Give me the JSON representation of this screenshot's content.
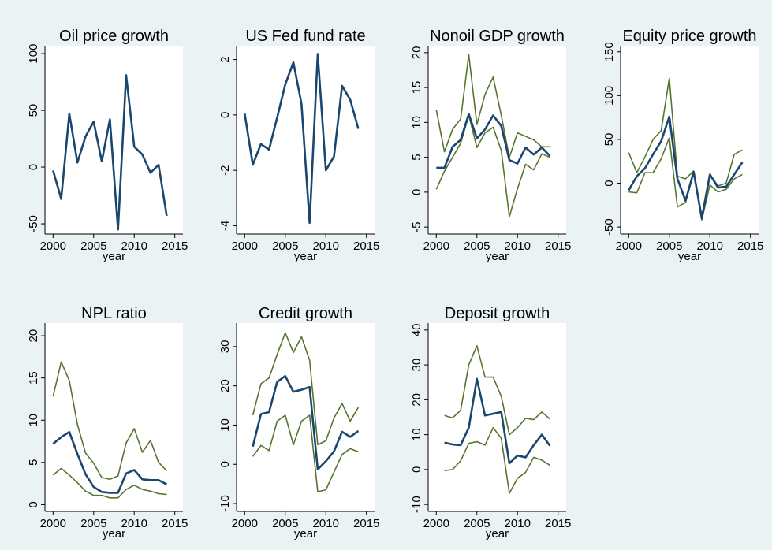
{
  "chart_data": [
    {
      "type": "line",
      "title": "Oil price growth",
      "x_label": "year",
      "x": [
        2000,
        2001,
        2002,
        2003,
        2004,
        2005,
        2006,
        2007,
        2008,
        2009,
        2010,
        2011,
        2012,
        2013,
        2014
      ],
      "series": [
        {
          "color": "#1a476f",
          "values": [
            -3,
            -28,
            47,
            4,
            27,
            40,
            5,
            42,
            -55,
            81,
            18,
            11,
            -5,
            2,
            -43
          ]
        }
      ],
      "xlim": [
        1999,
        2016
      ],
      "ylim": [
        -59,
        107
      ],
      "xticks": [
        2000,
        2005,
        2010,
        2015
      ],
      "yticks": [
        -50,
        0,
        50,
        100
      ]
    },
    {
      "type": "line",
      "title": "US Fed fund rate",
      "x_label": "year",
      "x": [
        2000,
        2001,
        2002,
        2003,
        2004,
        2005,
        2006,
        2007,
        2008,
        2009,
        2010,
        2011,
        2012,
        2013,
        2014
      ],
      "series": [
        {
          "color": "#1a476f",
          "values": [
            0.05,
            -1.8,
            -1.05,
            -1.25,
            -0.1,
            1.1,
            1.9,
            0.4,
            -3.9,
            2.2,
            -2.0,
            -1.5,
            1.05,
            0.55,
            -0.5
          ]
        }
      ],
      "xlim": [
        1999,
        2016
      ],
      "ylim": [
        -4.3,
        2.5
      ],
      "xticks": [
        2000,
        2005,
        2010,
        2015
      ],
      "yticks": [
        -4,
        -2,
        0,
        2
      ]
    },
    {
      "type": "line",
      "title": "Nonoil GDP growth",
      "x_label": "year",
      "x": [
        2000,
        2001,
        2002,
        2003,
        2004,
        2005,
        2006,
        2007,
        2008,
        2009,
        2010,
        2011,
        2012,
        2013,
        2014
      ],
      "series": [
        {
          "color": "#55752f",
          "values": [
            11.8,
            5.8,
            9.0,
            10.5,
            19.7,
            9.7,
            14,
            16.5,
            11,
            5,
            8.5,
            8.0,
            7.5,
            6.5,
            6.5
          ]
        },
        {
          "color": "#55752f",
          "values": [
            0.4,
            3.0,
            5.0,
            7,
            11,
            6.4,
            8.5,
            9.3,
            6,
            -3.5,
            0.5,
            4.0,
            3.2,
            5.5,
            5.0
          ]
        },
        {
          "color": "#1a476f",
          "values": [
            3.5,
            3.5,
            6.5,
            7.5,
            11.2,
            7.7,
            9.0,
            11,
            9.5,
            4.6,
            4.1,
            6.4,
            5.4,
            6.4,
            5.2
          ]
        }
      ],
      "xlim": [
        1999,
        2016
      ],
      "ylim": [
        -6,
        21
      ],
      "xticks": [
        2000,
        2005,
        2010,
        2015
      ],
      "yticks": [
        -5,
        0,
        5,
        10,
        15,
        20
      ]
    },
    {
      "type": "line",
      "title": "Equity price growth",
      "x_label": "year",
      "x": [
        2000,
        2001,
        2002,
        2003,
        2004,
        2005,
        2006,
        2007,
        2008,
        2009,
        2010,
        2011,
        2012,
        2013,
        2014
      ],
      "series": [
        {
          "color": "#55752f",
          "values": [
            35,
            12,
            30,
            50,
            60,
            120,
            8,
            5,
            14,
            -38,
            10,
            -3,
            0,
            33,
            38
          ]
        },
        {
          "color": "#55752f",
          "values": [
            -10,
            -11,
            12,
            12,
            28,
            52,
            -27,
            -22,
            13,
            -42,
            -2,
            -10,
            -7,
            5,
            10
          ]
        },
        {
          "color": "#1a476f",
          "values": [
            -8,
            8,
            17,
            33,
            48,
            76,
            5,
            -20,
            13,
            -40,
            10,
            -5,
            -4,
            10,
            24
          ]
        }
      ],
      "xlim": [
        1999,
        2016
      ],
      "ylim": [
        -58,
        157
      ],
      "xticks": [
        2000,
        2005,
        2010,
        2015
      ],
      "yticks": [
        -50,
        0,
        50,
        100,
        150
      ]
    },
    {
      "type": "line",
      "title": "NPL ratio",
      "x_label": "year",
      "x": [
        2000,
        2001,
        2002,
        2003,
        2004,
        2005,
        2006,
        2007,
        2008,
        2009,
        2010,
        2011,
        2012,
        2013,
        2014
      ],
      "series": [
        {
          "color": "#55752f",
          "values": [
            12.8,
            16.9,
            14.7,
            9.5,
            6.1,
            4.9,
            3.2,
            3.0,
            3.4,
            7.3,
            9.0,
            6.2,
            7.6,
            5.0,
            4.0
          ]
        },
        {
          "color": "#55752f",
          "values": [
            3.5,
            4.3,
            3.5,
            2.6,
            1.6,
            1.1,
            1.1,
            0.8,
            0.8,
            1.8,
            2.3,
            1.8,
            1.6,
            1.3,
            1.2
          ]
        },
        {
          "color": "#1a476f",
          "values": [
            7.2,
            8.0,
            8.6,
            6.0,
            3.6,
            2.1,
            1.5,
            1.4,
            1.4,
            3.7,
            4.1,
            3.0,
            2.9,
            2.9,
            2.4
          ]
        }
      ],
      "xlim": [
        1999,
        2016
      ],
      "ylim": [
        -0.8,
        21.5
      ],
      "xticks": [
        2000,
        2005,
        2010,
        2015
      ],
      "yticks": [
        0,
        5,
        10,
        15,
        20
      ]
    },
    {
      "type": "line",
      "title": "Credit growth",
      "x_label": "year",
      "x": [
        2001,
        2002,
        2003,
        2004,
        2005,
        2006,
        2007,
        2008,
        2009,
        2010,
        2011,
        2012,
        2013,
        2014
      ],
      "series": [
        {
          "color": "#55752f",
          "values": [
            12.5,
            20.5,
            22,
            28,
            33.5,
            28.5,
            32.5,
            26.5,
            5,
            6,
            11.8,
            15.5,
            11,
            14.5
          ]
        },
        {
          "color": "#55752f",
          "values": [
            2,
            4.8,
            3.5,
            11,
            12.5,
            5,
            11,
            12.5,
            -7,
            -6.5,
            -2,
            2.5,
            4,
            3.2
          ]
        },
        {
          "color": "#1a476f",
          "values": [
            4.5,
            12.8,
            13.3,
            21,
            22.5,
            18.5,
            19.0,
            19.7,
            -1.3,
            0.8,
            3.3,
            8.3,
            7,
            8.5
          ]
        }
      ],
      "xlim": [
        1999,
        2016
      ],
      "ylim": [
        -12,
        36
      ],
      "xticks": [
        2000,
        2005,
        2010,
        2015
      ],
      "yticks": [
        -10,
        0,
        10,
        20,
        30
      ]
    },
    {
      "type": "line",
      "title": "Deposit growth",
      "x_label": "year",
      "x": [
        2001,
        2002,
        2003,
        2004,
        2005,
        2006,
        2007,
        2008,
        2009,
        2010,
        2011,
        2012,
        2013,
        2014
      ],
      "series": [
        {
          "color": "#55752f",
          "values": [
            15.5,
            14.8,
            17,
            30,
            35.5,
            26.5,
            26.5,
            21,
            10,
            12,
            14.7,
            14.3,
            16.5,
            14.5
          ]
        },
        {
          "color": "#55752f",
          "values": [
            -0.3,
            0,
            2.5,
            7.5,
            8,
            7.0,
            12,
            9,
            -6.8,
            -2.5,
            -0.8,
            3.5,
            2.7,
            1.2
          ]
        },
        {
          "color": "#1a476f",
          "values": [
            7.7,
            7.2,
            7.0,
            12,
            26,
            15.5,
            16,
            16.5,
            1.8,
            4,
            3.5,
            7,
            10,
            6.8
          ]
        }
      ],
      "xlim": [
        1999,
        2016
      ],
      "ylim": [
        -12,
        42
      ],
      "xticks": [
        2000,
        2005,
        2010,
        2015
      ],
      "yticks": [
        -10,
        0,
        10,
        20,
        30,
        40
      ]
    }
  ]
}
